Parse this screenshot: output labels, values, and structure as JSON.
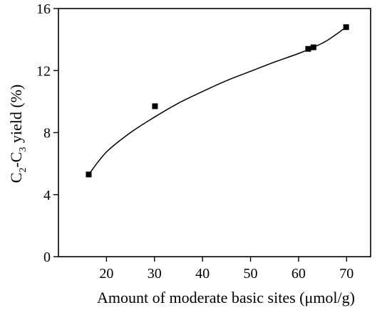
{
  "chart_data": {
    "type": "scatter",
    "title": "",
    "xlabel": "Amount of moderate basic sites (μmol/g)",
    "ylabel": {
      "prefix": "C",
      "sub1": "2",
      "dash": "-C",
      "sub2": "3",
      "suffix": " yield (%)"
    },
    "xlim": [
      10,
      75
    ],
    "ylim": [
      0,
      16
    ],
    "xticks": [
      20,
      30,
      40,
      50,
      60,
      70
    ],
    "xtick_labels": [
      "20",
      "30",
      "40",
      "50",
      "60",
      "70"
    ],
    "yticks": [
      0,
      4,
      8,
      12,
      16
    ],
    "ytick_labels": [
      "0",
      "4",
      "8",
      "12",
      "16"
    ],
    "grid": false,
    "legend": "none",
    "series": [
      {
        "marker": "square",
        "points": [
          {
            "x": 16.3,
            "y": 5.3
          },
          {
            "x": 30.1,
            "y": 9.7
          },
          {
            "x": 62.0,
            "y": 13.4
          },
          {
            "x": 63.1,
            "y": 13.5
          },
          {
            "x": 69.9,
            "y": 14.8
          }
        ]
      }
    ],
    "fit_curve": {
      "style": "smooth",
      "points": [
        {
          "x": 16.3,
          "y": 5.3
        },
        {
          "x": 20,
          "y": 6.75
        },
        {
          "x": 25,
          "y": 8.0
        },
        {
          "x": 30,
          "y": 9.0
        },
        {
          "x": 35,
          "y": 9.9
        },
        {
          "x": 40,
          "y": 10.65
        },
        {
          "x": 45,
          "y": 11.35
        },
        {
          "x": 50,
          "y": 11.95
        },
        {
          "x": 55,
          "y": 12.55
        },
        {
          "x": 60,
          "y": 13.1
        },
        {
          "x": 63.1,
          "y": 13.5
        },
        {
          "x": 66,
          "y": 13.95
        },
        {
          "x": 69.9,
          "y": 14.8
        }
      ]
    },
    "colors": {
      "axis": "#000000",
      "marker": "#000000",
      "curve": "#000000"
    }
  }
}
